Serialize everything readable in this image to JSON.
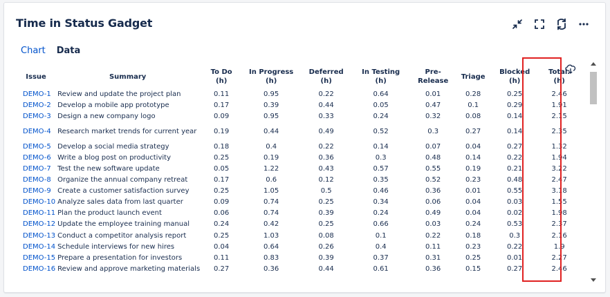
{
  "gadget": {
    "title": "Time in Status Gadget",
    "icons": [
      "collapse-icon",
      "fullscreen-icon",
      "refresh-icon",
      "more-icon",
      "cloud-download-icon"
    ]
  },
  "tabs": [
    {
      "label": "Chart",
      "active": false
    },
    {
      "label": "Data",
      "active": true
    }
  ],
  "table": {
    "headers": {
      "issue": "Issue",
      "summary": "Summary",
      "todo": [
        "To Do",
        "(h)"
      ],
      "inprogress": [
        "In Progress",
        "(h)"
      ],
      "deferred": [
        "Deferred",
        "(h)"
      ],
      "intesting": [
        "In Testing",
        "(h)"
      ],
      "prerelease": [
        "Pre-",
        "Release"
      ],
      "triage": "Triage",
      "blocked": [
        "Blocked",
        "(h)"
      ],
      "total": [
        "Total:",
        "(h)"
      ]
    },
    "rows": [
      {
        "issue": "DEMO-1",
        "summary": "Review and update the project plan",
        "todo": "0.11",
        "inprogress": "0.95",
        "deferred": "0.22",
        "intesting": "0.64",
        "prerelease": "0.01",
        "triage": "0.28",
        "blocked": "0.25",
        "total": "2.46"
      },
      {
        "issue": "DEMO-2",
        "summary": "Develop a mobile app prototype",
        "todo": "0.17",
        "inprogress": "0.39",
        "deferred": "0.44",
        "intesting": "0.05",
        "prerelease": "0.47",
        "triage": "0.1",
        "blocked": "0.29",
        "total": "1.91"
      },
      {
        "issue": "DEMO-3",
        "summary": "Design a new company logo",
        "todo": "0.09",
        "inprogress": "0.95",
        "deferred": "0.33",
        "intesting": "0.24",
        "prerelease": "0.32",
        "triage": "0.08",
        "blocked": "0.14",
        "total": "2.15"
      },
      {
        "issue": "DEMO-4",
        "summary": "Research market trends for current year",
        "todo": "0.19",
        "inprogress": "0.44",
        "deferred": "0.49",
        "intesting": "0.52",
        "prerelease": "0.3",
        "triage": "0.27",
        "blocked": "0.14",
        "total": "2.35"
      },
      {
        "issue": "DEMO-5",
        "summary": "Develop a social media strategy",
        "todo": "0.18",
        "inprogress": "0.4",
        "deferred": "0.22",
        "intesting": "0.14",
        "prerelease": "0.07",
        "triage": "0.04",
        "blocked": "0.27",
        "total": "1.32"
      },
      {
        "issue": "DEMO-6",
        "summary": "Write a blog post on productivity",
        "todo": "0.25",
        "inprogress": "0.19",
        "deferred": "0.36",
        "intesting": "0.3",
        "prerelease": "0.48",
        "triage": "0.14",
        "blocked": "0.22",
        "total": "1.94"
      },
      {
        "issue": "DEMO-7",
        "summary": "Test the new software update",
        "todo": "0.05",
        "inprogress": "1.22",
        "deferred": "0.43",
        "intesting": "0.57",
        "prerelease": "0.55",
        "triage": "0.19",
        "blocked": "0.21",
        "total": "3.22"
      },
      {
        "issue": "DEMO-8",
        "summary": "Organize the annual company retreat",
        "todo": "0.17",
        "inprogress": "0.6",
        "deferred": "0.12",
        "intesting": "0.35",
        "prerelease": "0.52",
        "triage": "0.23",
        "blocked": "0.48",
        "total": "2.47"
      },
      {
        "issue": "DEMO-9",
        "summary": "Create a customer satisfaction survey",
        "todo": "0.25",
        "inprogress": "1.05",
        "deferred": "0.5",
        "intesting": "0.46",
        "prerelease": "0.36",
        "triage": "0.01",
        "blocked": "0.55",
        "total": "3.18"
      },
      {
        "issue": "DEMO-10",
        "summary": "Analyze sales data from last quarter",
        "todo": "0.09",
        "inprogress": "0.74",
        "deferred": "0.25",
        "intesting": "0.34",
        "prerelease": "0.06",
        "triage": "0.04",
        "blocked": "0.03",
        "total": "1.55"
      },
      {
        "issue": "DEMO-11",
        "summary": "Plan the product launch event",
        "todo": "0.06",
        "inprogress": "0.74",
        "deferred": "0.39",
        "intesting": "0.24",
        "prerelease": "0.49",
        "triage": "0.04",
        "blocked": "0.02",
        "total": "1.98"
      },
      {
        "issue": "DEMO-12",
        "summary": "Update the employee training manual",
        "todo": "0.24",
        "inprogress": "0.42",
        "deferred": "0.25",
        "intesting": "0.66",
        "prerelease": "0.03",
        "triage": "0.24",
        "blocked": "0.53",
        "total": "2.37"
      },
      {
        "issue": "DEMO-13",
        "summary": "Conduct a competitor analysis report",
        "todo": "0.25",
        "inprogress": "1.03",
        "deferred": "0.08",
        "intesting": "0.1",
        "prerelease": "0.22",
        "triage": "0.18",
        "blocked": "0.3",
        "total": "2.16"
      },
      {
        "issue": "DEMO-14",
        "summary": "Schedule interviews for new hires",
        "todo": "0.04",
        "inprogress": "0.64",
        "deferred": "0.26",
        "intesting": "0.4",
        "prerelease": "0.11",
        "triage": "0.23",
        "blocked": "0.22",
        "total": "1.9"
      },
      {
        "issue": "DEMO-15",
        "summary": "Prepare a presentation for investors",
        "todo": "0.11",
        "inprogress": "0.83",
        "deferred": "0.39",
        "intesting": "0.37",
        "prerelease": "0.31",
        "triage": "0.25",
        "blocked": "0.01",
        "total": "2.27"
      },
      {
        "issue": "DEMO-16",
        "summary": "Review and approve marketing materials",
        "todo": "0.27",
        "inprogress": "0.36",
        "deferred": "0.44",
        "intesting": "0.61",
        "prerelease": "0.36",
        "triage": "0.15",
        "blocked": "0.27",
        "total": "2.46"
      }
    ]
  },
  "colors": {
    "link": "#0052cc",
    "text": "#172b4d",
    "highlight": "#e02020",
    "border": "#dfe1e6"
  }
}
